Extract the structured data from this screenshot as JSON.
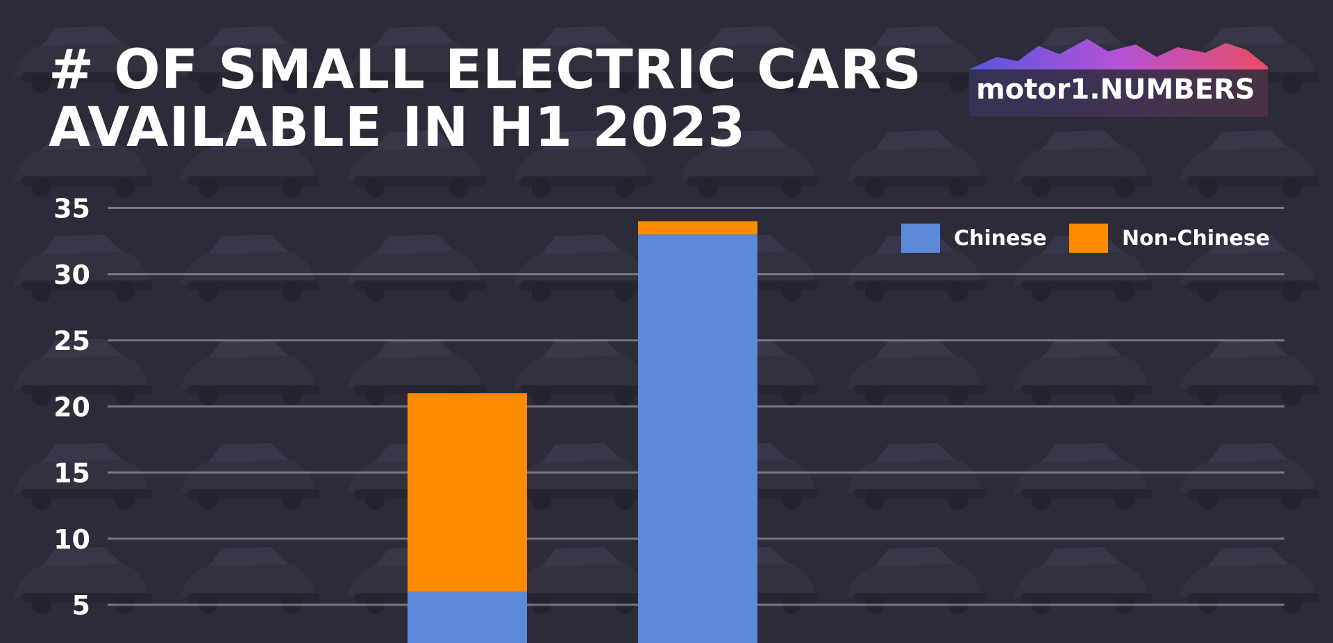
{
  "title_lines": [
    "# OF SMALL ELECTRIC CARS",
    "AVAILABLE IN H1 2023"
  ],
  "logo": {
    "text": "motor1.NUMBERS"
  },
  "colors": {
    "background": "#2b2b3a",
    "chinese": "#5b8ad9",
    "non_chinese": "#ff8a00",
    "grid": "#8a8a96",
    "text": "#ffffff"
  },
  "chart_data": {
    "type": "bar",
    "stacked": true,
    "title": "# OF SMALL ELECTRIC CARS AVAILABLE IN H1 2023",
    "categories": [
      "",
      ""
    ],
    "series": [
      {
        "name": "Chinese",
        "values": [
          6,
          33
        ]
      },
      {
        "name": "Non-Chinese",
        "values": [
          15,
          1
        ]
      }
    ],
    "yticks": [
      5,
      10,
      15,
      20,
      25,
      30,
      35
    ],
    "ylim": [
      0,
      35
    ],
    "grid": true,
    "legend_position": "top-right",
    "xlabel": "",
    "ylabel": ""
  }
}
